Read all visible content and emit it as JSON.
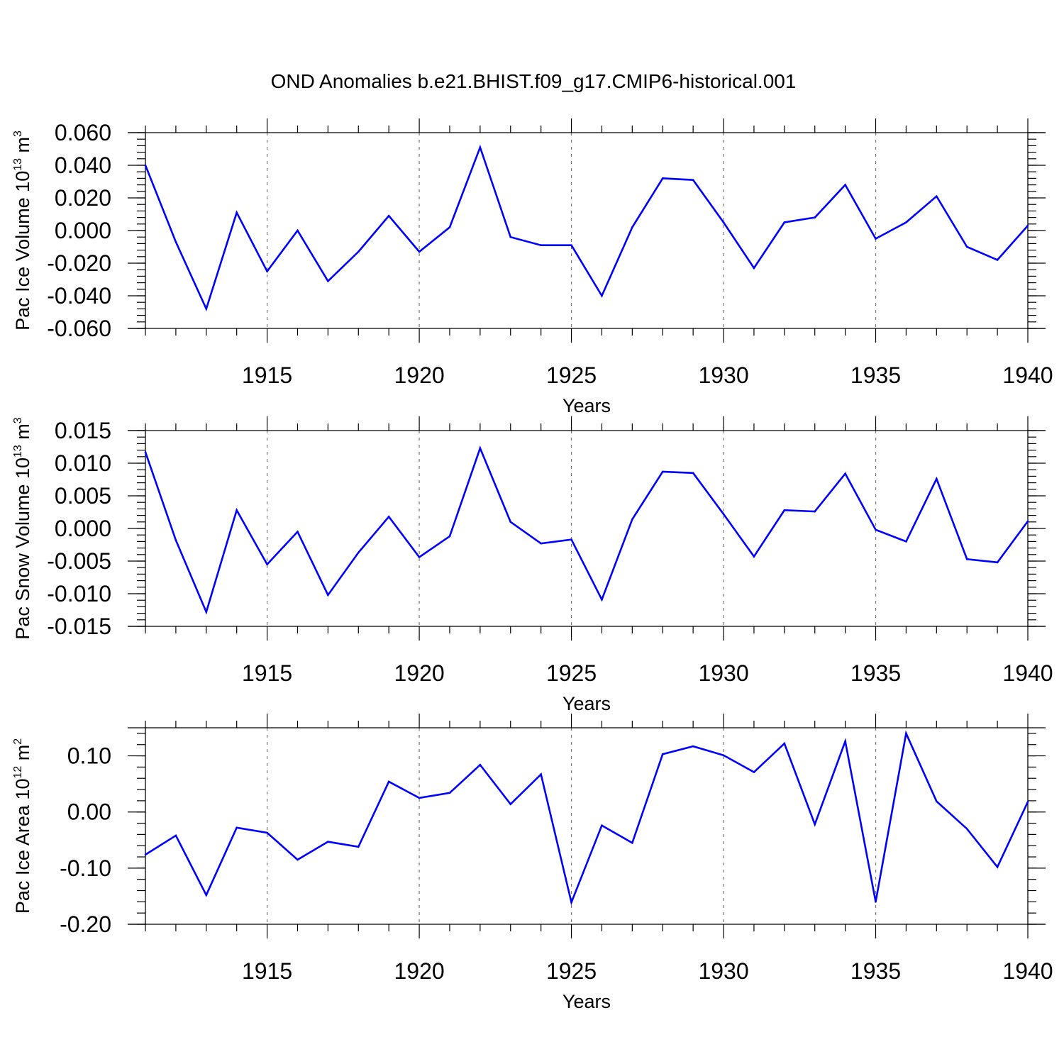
{
  "chart_data": {
    "title": "OND Anomalies b.e21.BHIST.f09_g17.CMIP6-historical.001",
    "line_color": "#0000ff",
    "x_years": [
      1911,
      1912,
      1913,
      1914,
      1915,
      1916,
      1917,
      1918,
      1919,
      1920,
      1921,
      1922,
      1923,
      1924,
      1925,
      1926,
      1927,
      1928,
      1929,
      1930,
      1931,
      1932,
      1933,
      1934,
      1935,
      1936,
      1937,
      1938,
      1939,
      1940
    ],
    "panels": [
      {
        "type": "line",
        "ylabel": "Pac Ice Volume 10",
        "ylabel_exp": "13",
        "ylabel_unit": " m",
        "ylabel_unit_exp": "3",
        "xlabel": "Years",
        "ylim": [
          -0.06,
          0.06
        ],
        "yticks": [
          -0.06,
          -0.04,
          -0.02,
          0.0,
          0.02,
          0.04,
          0.06
        ],
        "ytick_labels": [
          "-0.060",
          "-0.040",
          "-0.020",
          "0.000",
          "0.020",
          "0.040",
          "0.060"
        ],
        "xlim": [
          1911,
          1940
        ],
        "xticks": [
          1915,
          1920,
          1925,
          1930,
          1935,
          1940
        ],
        "xtick_labels": [
          "1915",
          "1920",
          "1925",
          "1930",
          "1935",
          "1940"
        ],
        "values": [
          0.04,
          -0.007,
          -0.048,
          0.011,
          -0.025,
          0.0,
          -0.031,
          -0.013,
          0.009,
          -0.013,
          0.002,
          0.051,
          -0.004,
          -0.009,
          -0.009,
          -0.04,
          0.002,
          0.032,
          0.031,
          0.005,
          -0.023,
          0.005,
          0.008,
          0.028,
          -0.005,
          0.005,
          0.021,
          -0.01,
          -0.018,
          0.003
        ]
      },
      {
        "type": "line",
        "ylabel": "Pac Snow Volume 10",
        "ylabel_exp": "13",
        "ylabel_unit": " m",
        "ylabel_unit_exp": "3",
        "xlabel": "Years",
        "ylim": [
          -0.015,
          0.015
        ],
        "yticks": [
          -0.015,
          -0.01,
          -0.005,
          0.0,
          0.005,
          0.01,
          0.015
        ],
        "ytick_labels": [
          "-0.015",
          "-0.010",
          "-0.005",
          "0.000",
          "0.005",
          "0.010",
          "0.015"
        ],
        "xlim": [
          1911,
          1940
        ],
        "xticks": [
          1915,
          1920,
          1925,
          1930,
          1935,
          1940
        ],
        "xtick_labels": [
          "1915",
          "1920",
          "1925",
          "1930",
          "1935",
          "1940"
        ],
        "values": [
          0.0117,
          -0.0018,
          -0.0128,
          0.0028,
          -0.0055,
          -0.0005,
          -0.0102,
          -0.0037,
          0.0018,
          -0.0044,
          -0.0012,
          0.0123,
          0.001,
          -0.0023,
          -0.0017,
          -0.0109,
          0.0014,
          0.0087,
          0.0085,
          0.0022,
          -0.0043,
          0.0028,
          0.0026,
          0.0084,
          -0.0002,
          -0.002,
          0.0076,
          -0.0047,
          -0.0052,
          0.0011
        ]
      },
      {
        "type": "line",
        "ylabel": "Pac Ice Area 10",
        "ylabel_exp": "12",
        "ylabel_unit": " m",
        "ylabel_unit_exp": "2",
        "xlabel": "Years",
        "ylim": [
          -0.2,
          0.15
        ],
        "yticks": [
          -0.2,
          -0.1,
          0.0,
          0.1
        ],
        "ytick_labels": [
          "-0.20",
          "-0.10",
          "0.00",
          "0.10"
        ],
        "xlim": [
          1911,
          1940
        ],
        "xticks": [
          1915,
          1920,
          1925,
          1930,
          1935,
          1940
        ],
        "xtick_labels": [
          "1915",
          "1920",
          "1925",
          "1930",
          "1935",
          "1940"
        ],
        "values": [
          -0.076,
          -0.042,
          -0.148,
          -0.028,
          -0.037,
          -0.085,
          -0.053,
          -0.062,
          0.054,
          0.025,
          0.034,
          0.084,
          0.014,
          0.067,
          -0.161,
          -0.024,
          -0.055,
          0.103,
          0.117,
          0.101,
          0.071,
          0.122,
          -0.022,
          0.126,
          -0.16,
          0.14,
          0.019,
          -0.03,
          -0.098,
          0.018
        ]
      }
    ]
  }
}
